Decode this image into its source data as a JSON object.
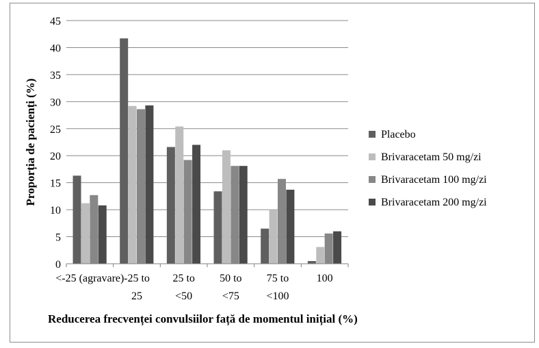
{
  "chart_data": {
    "type": "bar",
    "categories": [
      "<-25 (agravare)",
      "-25 to 25",
      "25 to <50",
      "50 to <75",
      "75 to <100",
      "100"
    ],
    "series": [
      {
        "name": "Placebo",
        "color": "#5f5f5f",
        "values": [
          16.3,
          41.7,
          21.6,
          13.4,
          6.5,
          0.5
        ]
      },
      {
        "name": "Brivaracetam 50 mg/zi",
        "color": "#bdbdbd",
        "values": [
          11.2,
          29.2,
          25.4,
          21.0,
          10.0,
          3.1
        ]
      },
      {
        "name": "Brivaracetam 100 mg/zi",
        "color": "#878787",
        "values": [
          12.7,
          28.6,
          19.2,
          18.1,
          15.7,
          5.6
        ]
      },
      {
        "name": "Brivaracetam 200 mg/zi",
        "color": "#4a4a4a",
        "values": [
          10.8,
          29.3,
          22.0,
          18.1,
          13.7,
          6.0
        ]
      }
    ],
    "xlabel": "Reducerea frecvenței convulsiilor față de momentul inițial (%)",
    "ylabel": "Proporția de pacienți (%)",
    "ylim": [
      0,
      45
    ],
    "yticks": [
      0,
      5,
      10,
      15,
      20,
      25,
      30,
      35,
      40,
      45
    ],
    "grid": true,
    "legend_position": "right"
  }
}
